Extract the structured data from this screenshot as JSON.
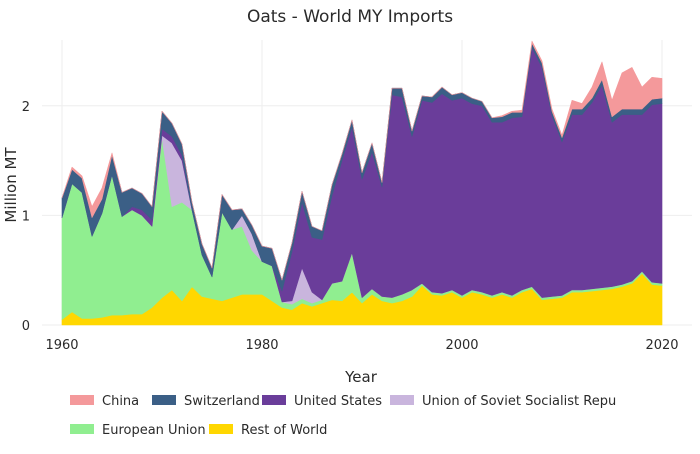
{
  "chart_data": {
    "type": "area",
    "stacked": true,
    "title": "Oats - World MY Imports",
    "xlabel": "Year",
    "ylabel": "Million MT",
    "xlim": [
      1958,
      2023
    ],
    "ylim": [
      0,
      2.6
    ],
    "x_ticks": [
      1960,
      1980,
      2000,
      2020
    ],
    "y_ticks": [
      0,
      1,
      2
    ],
    "x_tick_labels": [
      "1960",
      "1980",
      "2000",
      "2020"
    ],
    "y_tick_labels": [
      "0",
      "1",
      "2"
    ],
    "grid": true,
    "legend_position": "bottom",
    "x": [
      1960,
      1961,
      1962,
      1963,
      1964,
      1965,
      1966,
      1967,
      1968,
      1969,
      1970,
      1971,
      1972,
      1973,
      1974,
      1975,
      1976,
      1977,
      1978,
      1979,
      1980,
      1981,
      1982,
      1983,
      1984,
      1985,
      1986,
      1987,
      1988,
      1989,
      1990,
      1991,
      1992,
      1993,
      1994,
      1995,
      1996,
      1997,
      1998,
      1999,
      2000,
      2001,
      2002,
      2003,
      2004,
      2005,
      2006,
      2007,
      2008,
      2009,
      2010,
      2011,
      2012,
      2013,
      2014,
      2015,
      2016,
      2017,
      2018,
      2019,
      2020
    ],
    "series": [
      {
        "name": "Rest of World",
        "color": "#FFD700",
        "values": [
          0.05,
          0.12,
          0.06,
          0.06,
          0.07,
          0.09,
          0.09,
          0.1,
          0.1,
          0.16,
          0.25,
          0.32,
          0.22,
          0.35,
          0.26,
          0.24,
          0.22,
          0.25,
          0.28,
          0.28,
          0.28,
          0.22,
          0.16,
          0.14,
          0.2,
          0.17,
          0.2,
          0.23,
          0.22,
          0.3,
          0.2,
          0.28,
          0.22,
          0.2,
          0.22,
          0.26,
          0.36,
          0.28,
          0.27,
          0.3,
          0.25,
          0.3,
          0.28,
          0.25,
          0.28,
          0.25,
          0.3,
          0.33,
          0.23,
          0.24,
          0.25,
          0.3,
          0.3,
          0.31,
          0.32,
          0.33,
          0.35,
          0.38,
          0.47,
          0.37,
          0.36
        ]
      },
      {
        "name": "European Union",
        "color": "#90EE90",
        "values": [
          0.93,
          1.17,
          1.15,
          0.75,
          0.95,
          1.28,
          0.9,
          0.95,
          0.9,
          0.74,
          1.46,
          0.76,
          0.9,
          0.7,
          0.38,
          0.2,
          0.81,
          0.62,
          0.62,
          0.4,
          0.3,
          0.32,
          0.05,
          0.05,
          0.04,
          0.03,
          0.03,
          0.15,
          0.18,
          0.36,
          0.05,
          0.05,
          0.04,
          0.05,
          0.06,
          0.06,
          0.02,
          0.02,
          0.02,
          0.02,
          0.02,
          0.02,
          0.02,
          0.02,
          0.02,
          0.02,
          0.02,
          0.02,
          0.02,
          0.02,
          0.02,
          0.02,
          0.02,
          0.02,
          0.02,
          0.02,
          0.02,
          0.02,
          0.02,
          0.02,
          0.02
        ]
      },
      {
        "name": "Union of Soviet Socialist Repu",
        "color": "#C9B5DD",
        "values": [
          0,
          0,
          0,
          0,
          0,
          0,
          0,
          0,
          0,
          0,
          0.02,
          0.58,
          0.38,
          0,
          0,
          0,
          0,
          0,
          0.1,
          0.15,
          0,
          0,
          0,
          0.03,
          0.28,
          0.1,
          0,
          0,
          0,
          0,
          0,
          0,
          0,
          0,
          0,
          0,
          0,
          0,
          0,
          0,
          0,
          0,
          0,
          0,
          0,
          0,
          0,
          0,
          0,
          0,
          0,
          0,
          0,
          0,
          0,
          0,
          0,
          0,
          0,
          0,
          0
        ]
      },
      {
        "name": "United States",
        "color": "#6A3D9A",
        "values": [
          0,
          0,
          0,
          0,
          0,
          0,
          0,
          0.03,
          0.05,
          0.06,
          0.06,
          0.06,
          0.05,
          0,
          0,
          0,
          0,
          0,
          0,
          0,
          0,
          0,
          0.1,
          0.45,
          0.6,
          0.5,
          0.55,
          0.8,
          1.1,
          1.15,
          1.08,
          1.25,
          1.0,
          1.85,
          1.8,
          1.4,
          1.67,
          1.73,
          1.82,
          1.73,
          1.8,
          1.7,
          1.7,
          1.58,
          1.55,
          1.62,
          1.58,
          2.18,
          2.1,
          1.65,
          1.4,
          1.6,
          1.6,
          1.7,
          1.85,
          1.5,
          1.55,
          1.52,
          1.43,
          1.62,
          1.64
        ]
      },
      {
        "name": "Switzerland",
        "color": "#3B5F86",
        "values": [
          0.18,
          0.13,
          0.13,
          0.17,
          0.13,
          0.18,
          0.22,
          0.17,
          0.15,
          0.12,
          0.16,
          0.12,
          0.1,
          0.07,
          0.1,
          0.08,
          0.16,
          0.18,
          0.06,
          0.08,
          0.14,
          0.16,
          0.1,
          0.08,
          0.1,
          0.1,
          0.08,
          0.1,
          0.06,
          0.06,
          0.06,
          0.08,
          0.04,
          0.06,
          0.08,
          0.05,
          0.04,
          0.05,
          0.06,
          0.05,
          0.05,
          0.05,
          0.04,
          0.04,
          0.05,
          0.05,
          0.04,
          0.04,
          0.04,
          0.04,
          0.04,
          0.05,
          0.05,
          0.04,
          0.05,
          0.05,
          0.05,
          0.05,
          0.05,
          0.05,
          0.05
        ]
      },
      {
        "name": "China",
        "color": "#F4999B",
        "values": [
          0,
          0.02,
          0.02,
          0.1,
          0.1,
          0.02,
          0,
          0,
          0,
          0,
          0,
          0,
          0,
          0,
          0,
          0,
          0,
          0,
          0,
          0,
          0,
          0,
          0,
          0,
          0,
          0,
          0,
          0,
          0,
          0,
          0,
          0,
          0,
          0,
          0,
          0,
          0,
          0,
          0,
          0,
          0,
          0,
          0,
          0,
          0.01,
          0.01,
          0.02,
          0.02,
          0.02,
          0.02,
          0.02,
          0.08,
          0.05,
          0.1,
          0.16,
          0.15,
          0.33,
          0.38,
          0.2,
          0.2,
          0.18
        ]
      }
    ],
    "legend": [
      {
        "name": "China",
        "color": "#F4999B"
      },
      {
        "name": "Switzerland",
        "color": "#3B5F86"
      },
      {
        "name": "United States",
        "color": "#6A3D9A"
      },
      {
        "name": "Union of Soviet Socialist Repu",
        "color": "#C9B5DD"
      },
      {
        "name": "European Union",
        "color": "#90EE90"
      },
      {
        "name": "Rest of World",
        "color": "#FFD700"
      }
    ]
  }
}
